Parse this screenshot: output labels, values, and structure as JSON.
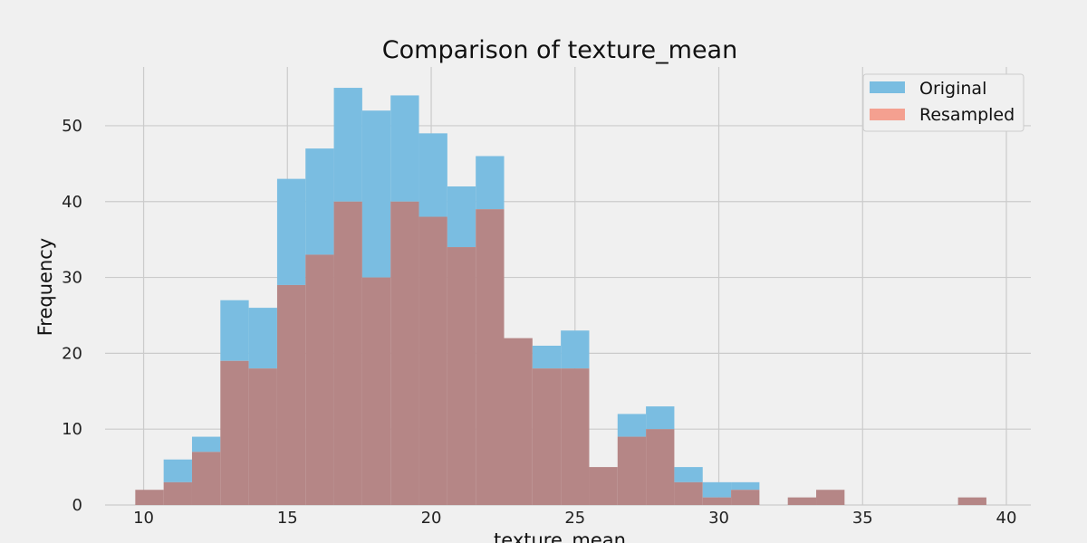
{
  "chart_data": {
    "type": "histogram",
    "title": "Comparison of texture_mean",
    "xlabel": "texture_mean",
    "ylabel": "Frequency",
    "xlim": [
      8.66,
      40.85
    ],
    "ylim": [
      0,
      57.75
    ],
    "xticks": [
      10,
      15,
      20,
      25,
      30,
      35,
      40
    ],
    "yticks": [
      0,
      10,
      20,
      30,
      40,
      50
    ],
    "grid": true,
    "legend_position": "top-right",
    "bin_start": 9.71,
    "bin_width": 0.9865,
    "series": [
      {
        "name": "Original",
        "color": "#7abde1",
        "values": [
          2,
          6,
          9,
          27,
          26,
          43,
          47,
          55,
          52,
          54,
          49,
          42,
          46,
          22,
          21,
          23,
          5,
          12,
          13,
          5,
          3,
          3,
          0,
          1,
          2,
          0,
          0,
          0,
          0,
          1
        ]
      },
      {
        "name": "Resampled",
        "color": "#f4a090",
        "values": [
          2,
          3,
          7,
          19,
          18,
          29,
          33,
          40,
          30,
          40,
          38,
          34,
          39,
          22,
          18,
          18,
          5,
          9,
          10,
          3,
          1,
          2,
          0,
          1,
          2,
          0,
          0,
          0,
          0,
          1
        ]
      }
    ],
    "overlap_color": "#b58686"
  }
}
